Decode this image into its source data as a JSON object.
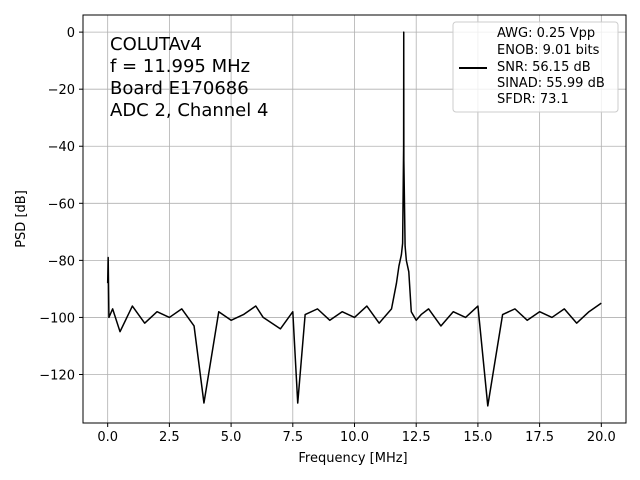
{
  "chart_data": {
    "type": "line",
    "xlabel": "Frequency [MHz]",
    "ylabel": "PSD [dB]",
    "xlim": [
      -1.0,
      21.0
    ],
    "ylim": [
      -137,
      6
    ],
    "xticks": [
      0.0,
      2.5,
      5.0,
      7.5,
      10.0,
      12.5,
      15.0,
      17.5,
      20.0
    ],
    "xtick_labels": [
      "0.0",
      "2.5",
      "5.0",
      "7.5",
      "10.0",
      "12.5",
      "15.0",
      "17.5",
      "20.0"
    ],
    "yticks": [
      0,
      -20,
      -40,
      -60,
      -80,
      -100,
      -120
    ],
    "ytick_labels": [
      "0",
      "−20",
      "−40",
      "−60",
      "−80",
      "−100",
      "−120"
    ],
    "grid": true,
    "annotation": [
      "COLUTAv4",
      "f = 11.995 MHz",
      "Board E170686",
      "ADC 2, Channel 4"
    ],
    "legend": {
      "placement": "top-right",
      "entries": [
        "AWG: 0.25 Vpp",
        "ENOB: 9.01 bits",
        "SNR: 56.15 dB",
        "SINAD: 55.99 dB",
        "SFDR: 73.1"
      ]
    },
    "series": [
      {
        "color": "#000000",
        "x": [
          0.0,
          0.02,
          0.05,
          0.2,
          0.5,
          1.0,
          1.5,
          2.0,
          2.5,
          3.0,
          3.5,
          3.9,
          4.5,
          5.0,
          5.5,
          6.0,
          6.3,
          7.0,
          7.5,
          7.7,
          8.0,
          8.5,
          9.0,
          9.5,
          10.0,
          10.5,
          11.0,
          11.5,
          11.7,
          11.8,
          11.9,
          11.95,
          11.99,
          11.995,
          12.0,
          12.05,
          12.1,
          12.2,
          12.3,
          12.5,
          12.7,
          13.0,
          13.5,
          14.0,
          14.5,
          15.0,
          15.4,
          16.0,
          16.5,
          17.0,
          17.5,
          18.0,
          18.5,
          19.0,
          19.5,
          20.0
        ],
        "y": [
          -88,
          -79,
          -100,
          -97,
          -105,
          -96,
          -102,
          -98,
          -100,
          -97,
          -103,
          -130,
          -98,
          -101,
          -99,
          -96,
          -100,
          -104,
          -98,
          -130,
          -99,
          -97,
          -101,
          -98,
          -100,
          -96,
          -102,
          -97,
          -88,
          -82,
          -78,
          -74,
          -40,
          0,
          -45,
          -75,
          -80,
          -84,
          -98,
          -101,
          -99,
          -97,
          -103,
          -98,
          -100,
          -96,
          -131,
          -99,
          -97,
          -101,
          -98,
          -100,
          -97,
          -102,
          -98,
          -95
        ]
      }
    ]
  }
}
